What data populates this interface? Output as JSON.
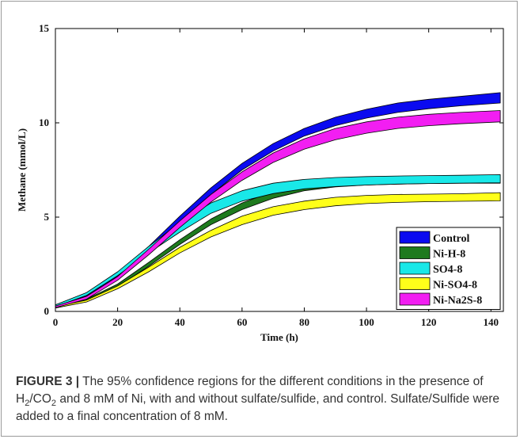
{
  "chart_data": {
    "type": "area",
    "title": "",
    "xlabel": "Time (h)",
    "ylabel": "Methane (mmol/L)",
    "xlim": [
      0,
      144
    ],
    "ylim": [
      0,
      15
    ],
    "xticks": [
      0,
      20,
      40,
      60,
      80,
      100,
      120,
      140
    ],
    "yticks": [
      0,
      5,
      10,
      15
    ],
    "grid": false,
    "legend_position": "bottom-right",
    "x": [
      0,
      10,
      20,
      30,
      40,
      50,
      60,
      70,
      80,
      90,
      100,
      110,
      120,
      130,
      143
    ],
    "series": [
      {
        "name": "Control",
        "color": "#0a0af0",
        "lower": [
          0.28,
          0.8,
          1.8,
          3.2,
          4.75,
          6.2,
          7.5,
          8.5,
          9.3,
          9.85,
          10.25,
          10.55,
          10.75,
          10.9,
          11.05
        ],
        "upper": [
          0.35,
          0.95,
          2.0,
          3.45,
          5.05,
          6.55,
          7.85,
          8.9,
          9.7,
          10.3,
          10.72,
          11.05,
          11.25,
          11.4,
          11.6
        ]
      },
      {
        "name": "Ni-H-8",
        "color": "#1e7a1e",
        "lower": [
          0.18,
          0.55,
          1.3,
          2.4,
          3.55,
          4.6,
          5.4,
          6.0,
          6.4,
          6.6,
          6.7,
          6.75,
          6.78,
          6.8,
          6.8
        ],
        "upper": [
          0.25,
          0.65,
          1.45,
          2.6,
          3.8,
          4.9,
          5.75,
          6.35,
          6.7,
          6.85,
          6.9,
          6.92,
          6.93,
          6.94,
          6.95
        ]
      },
      {
        "name": "SO4-8",
        "color": "#19e8e8",
        "lower": [
          0.25,
          0.85,
          1.9,
          3.1,
          4.2,
          5.2,
          5.85,
          6.25,
          6.5,
          6.62,
          6.7,
          6.75,
          6.78,
          6.8,
          6.82
        ],
        "upper": [
          0.35,
          1.0,
          2.1,
          3.45,
          4.7,
          5.75,
          6.4,
          6.8,
          7.0,
          7.1,
          7.15,
          7.18,
          7.2,
          7.22,
          7.25
        ]
      },
      {
        "name": "Ni-SO4-8",
        "color": "#ffff1a",
        "lower": [
          0.18,
          0.5,
          1.2,
          2.1,
          3.1,
          3.95,
          4.6,
          5.1,
          5.4,
          5.6,
          5.72,
          5.78,
          5.82,
          5.84,
          5.86
        ],
        "upper": [
          0.25,
          0.6,
          1.35,
          2.35,
          3.4,
          4.3,
          5.05,
          5.55,
          5.85,
          6.05,
          6.15,
          6.2,
          6.22,
          6.24,
          6.3
        ]
      },
      {
        "name": "Ni-Na2S-8",
        "color": "#f21ef2",
        "lower": [
          0.2,
          0.65,
          1.65,
          3.0,
          4.45,
          5.8,
          6.95,
          7.9,
          8.6,
          9.1,
          9.45,
          9.7,
          9.85,
          9.95,
          10.05
        ],
        "upper": [
          0.28,
          0.8,
          1.85,
          3.3,
          4.8,
          6.2,
          7.4,
          8.4,
          9.15,
          9.7,
          10.05,
          10.3,
          10.45,
          10.55,
          10.65
        ]
      }
    ]
  },
  "caption": {
    "label": "FIGURE 3 |",
    "text_before_h2": " The 95% confidence regions for the different conditions in the presence of H",
    "sub_2a": "2",
    "slash_co": "/CO",
    "sub_2b": "2",
    "text_after": " and 8 mM of Ni, with and without sulfate/sulfide, and control. Sulfate/Sulfide were added to a final concentration of 8 mM."
  }
}
